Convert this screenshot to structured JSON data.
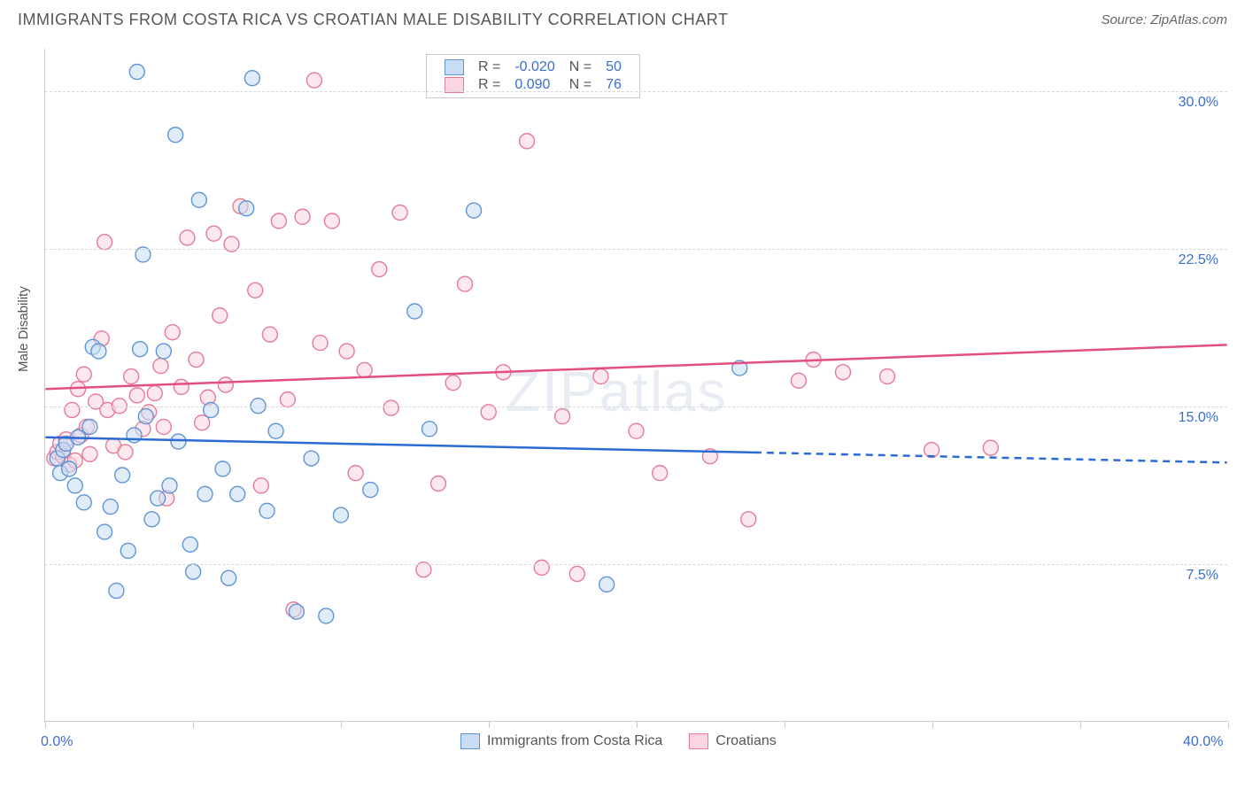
{
  "title": "IMMIGRANTS FROM COSTA RICA VS CROATIAN MALE DISABILITY CORRELATION CHART",
  "source": "Source: ZipAtlas.com",
  "watermark": "ZIPatlas",
  "ylabel": "Male Disability",
  "xaxis": {
    "min": 0.0,
    "max": 40.0,
    "tick_step": 5.0,
    "labels_shown": [
      "0.0%",
      "40.0%"
    ]
  },
  "yaxis": {
    "min": 0.0,
    "max": 32.0,
    "ticks": [
      7.5,
      15.0,
      22.5,
      30.0
    ],
    "tick_labels": [
      "7.5%",
      "15.0%",
      "22.5%",
      "30.0%"
    ]
  },
  "colors": {
    "series_a_fill": "#c8ddf4",
    "series_a_stroke": "#5f95d6",
    "series_b_fill": "#fbd5df",
    "series_b_stroke": "#e67a9a",
    "tick_label": "#3b6fc9",
    "grid": "#d8d8d8",
    "axis": "#cccccc",
    "text": "#555555",
    "trend_a": "#2a6bd4",
    "trend_b": "#e24f7e"
  },
  "marker_radius": 8.5,
  "legend_top": {
    "rows": [
      {
        "swatch": "a",
        "r_label": "R =",
        "r": "-0.020",
        "n_label": "N =",
        "n": "50"
      },
      {
        "swatch": "b",
        "r_label": "R =",
        "r": "0.090",
        "n_label": "N =",
        "n": "76"
      }
    ]
  },
  "legend_bottom": {
    "a": "Immigrants from Costa Rica",
    "b": "Croatians"
  },
  "trend_lines": {
    "a": {
      "y_at_xmin": 13.5,
      "y_at_xmax": 12.3,
      "solid_until_x": 24.0
    },
    "b": {
      "y_at_xmin": 15.8,
      "y_at_xmax": 17.9,
      "solid_until_x": 40.0
    }
  },
  "series_a_points": [
    [
      0.4,
      12.5
    ],
    [
      0.5,
      11.8
    ],
    [
      0.6,
      12.9
    ],
    [
      0.7,
      13.2
    ],
    [
      0.8,
      12.0
    ],
    [
      1.0,
      11.2
    ],
    [
      1.1,
      13.5
    ],
    [
      1.3,
      10.4
    ],
    [
      1.5,
      14.0
    ],
    [
      1.6,
      17.8
    ],
    [
      1.8,
      17.6
    ],
    [
      2.0,
      9.0
    ],
    [
      2.2,
      10.2
    ],
    [
      2.4,
      6.2
    ],
    [
      2.6,
      11.7
    ],
    [
      2.8,
      8.1
    ],
    [
      3.0,
      13.6
    ],
    [
      3.1,
      30.9
    ],
    [
      3.2,
      17.7
    ],
    [
      3.4,
      14.5
    ],
    [
      3.3,
      22.2
    ],
    [
      3.6,
      9.6
    ],
    [
      3.8,
      10.6
    ],
    [
      4.0,
      17.6
    ],
    [
      4.2,
      11.2
    ],
    [
      4.4,
      27.9
    ],
    [
      4.5,
      13.3
    ],
    [
      4.9,
      8.4
    ],
    [
      5.0,
      7.1
    ],
    [
      5.2,
      24.8
    ],
    [
      5.4,
      10.8
    ],
    [
      5.6,
      14.8
    ],
    [
      6.0,
      12.0
    ],
    [
      6.2,
      6.8
    ],
    [
      6.5,
      10.8
    ],
    [
      6.8,
      24.4
    ],
    [
      7.0,
      30.6
    ],
    [
      7.2,
      15.0
    ],
    [
      7.5,
      10.0
    ],
    [
      7.8,
      13.8
    ],
    [
      8.5,
      5.2
    ],
    [
      9.0,
      12.5
    ],
    [
      9.5,
      5.0
    ],
    [
      10.0,
      9.8
    ],
    [
      11.0,
      11.0
    ],
    [
      12.5,
      19.5
    ],
    [
      13.0,
      13.9
    ],
    [
      14.5,
      24.3
    ],
    [
      19.0,
      6.5
    ],
    [
      23.5,
      16.8
    ]
  ],
  "series_b_points": [
    [
      0.3,
      12.5
    ],
    [
      0.4,
      12.8
    ],
    [
      0.5,
      13.2
    ],
    [
      0.6,
      12.6
    ],
    [
      0.7,
      13.4
    ],
    [
      0.8,
      12.2
    ],
    [
      0.9,
      14.8
    ],
    [
      1.0,
      12.4
    ],
    [
      1.1,
      15.8
    ],
    [
      1.2,
      13.6
    ],
    [
      1.3,
      16.5
    ],
    [
      1.4,
      14.0
    ],
    [
      1.5,
      12.7
    ],
    [
      1.7,
      15.2
    ],
    [
      1.9,
      18.2
    ],
    [
      2.1,
      14.8
    ],
    [
      2.3,
      13.1
    ],
    [
      2.5,
      15.0
    ],
    [
      2.7,
      12.8
    ],
    [
      2.9,
      16.4
    ],
    [
      3.1,
      15.5
    ],
    [
      3.3,
      13.9
    ],
    [
      3.5,
      14.7
    ],
    [
      3.7,
      15.6
    ],
    [
      3.9,
      16.9
    ],
    [
      4.1,
      10.6
    ],
    [
      4.3,
      18.5
    ],
    [
      4.6,
      15.9
    ],
    [
      4.8,
      23.0
    ],
    [
      5.1,
      17.2
    ],
    [
      5.3,
      14.2
    ],
    [
      5.7,
      23.2
    ],
    [
      5.9,
      19.3
    ],
    [
      6.1,
      16.0
    ],
    [
      6.3,
      22.7
    ],
    [
      6.6,
      24.5
    ],
    [
      7.1,
      20.5
    ],
    [
      7.3,
      11.2
    ],
    [
      7.6,
      18.4
    ],
    [
      7.9,
      23.8
    ],
    [
      8.2,
      15.3
    ],
    [
      8.4,
      5.3
    ],
    [
      8.7,
      24.0
    ],
    [
      9.1,
      30.5
    ],
    [
      9.3,
      18.0
    ],
    [
      9.7,
      23.8
    ],
    [
      10.2,
      17.6
    ],
    [
      10.5,
      11.8
    ],
    [
      10.8,
      16.7
    ],
    [
      11.3,
      21.5
    ],
    [
      11.7,
      14.9
    ],
    [
      12.0,
      24.2
    ],
    [
      12.8,
      7.2
    ],
    [
      13.3,
      11.3
    ],
    [
      13.8,
      16.1
    ],
    [
      14.2,
      20.8
    ],
    [
      15.0,
      14.7
    ],
    [
      15.5,
      16.6
    ],
    [
      16.3,
      27.6
    ],
    [
      16.8,
      7.3
    ],
    [
      17.5,
      14.5
    ],
    [
      18.0,
      7.0
    ],
    [
      18.8,
      16.4
    ],
    [
      20.0,
      13.8
    ],
    [
      22.5,
      12.6
    ],
    [
      23.8,
      9.6
    ],
    [
      25.5,
      16.2
    ],
    [
      26.0,
      17.2
    ],
    [
      27.0,
      16.6
    ],
    [
      28.5,
      16.4
    ],
    [
      30.0,
      12.9
    ],
    [
      32.0,
      13.0
    ],
    [
      20.8,
      11.8
    ],
    [
      4.0,
      14.0
    ],
    [
      2.0,
      22.8
    ],
    [
      5.5,
      15.4
    ]
  ]
}
